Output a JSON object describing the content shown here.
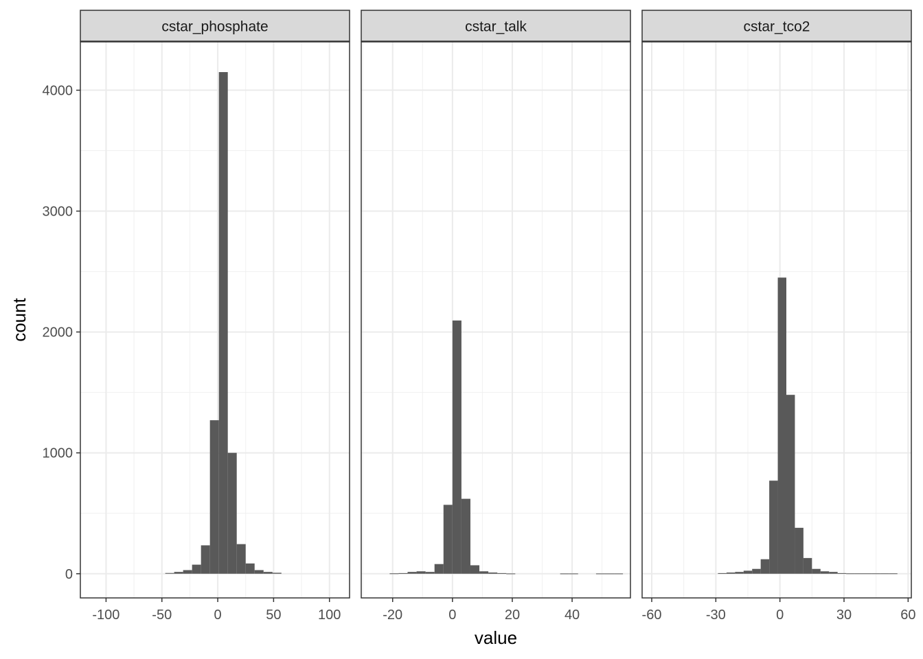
{
  "chart_data": {
    "type": "bar",
    "xlabel": "value",
    "ylabel": "count",
    "ylim": [
      -200,
      4400
    ],
    "y_ticks": [
      0,
      1000,
      2000,
      3000,
      4000
    ],
    "y_tick_labels": [
      "0",
      "1000",
      "2000",
      "3000",
      "4000"
    ],
    "grid": true,
    "bar_color": "#595959",
    "panels": [
      {
        "title": "cstar_phosphate",
        "xlim": [
          -123,
          118
        ],
        "x_ticks": [
          -100,
          -50,
          0,
          50,
          100
        ],
        "x_tick_labels": [
          "-100",
          "-50",
          "0",
          "50",
          "100"
        ],
        "bins": [
          {
            "x0": -47,
            "x1": -39,
            "count": 6
          },
          {
            "x0": -39,
            "x1": -31,
            "count": 15
          },
          {
            "x0": -31,
            "x1": -23,
            "count": 30
          },
          {
            "x0": -23,
            "x1": -15,
            "count": 75
          },
          {
            "x0": -15,
            "x1": -7,
            "count": 235
          },
          {
            "x0": -7,
            "x1": 1,
            "count": 1270
          },
          {
            "x0": 1,
            "x1": 9,
            "count": 4150
          },
          {
            "x0": 9,
            "x1": 17,
            "count": 1000
          },
          {
            "x0": 17,
            "x1": 25,
            "count": 245
          },
          {
            "x0": 25,
            "x1": 33,
            "count": 85
          },
          {
            "x0": 33,
            "x1": 41,
            "count": 30
          },
          {
            "x0": 41,
            "x1": 49,
            "count": 15
          },
          {
            "x0": 49,
            "x1": 57,
            "count": 8
          }
        ]
      },
      {
        "title": "cstar_talk",
        "xlim": [
          -30.5,
          59.5
        ],
        "x_ticks": [
          -20,
          0,
          20,
          40
        ],
        "x_tick_labels": [
          "-20",
          "0",
          "20",
          "40"
        ],
        "bins": [
          {
            "x0": -21,
            "x1": -18,
            "count": 3
          },
          {
            "x0": -18,
            "x1": -15,
            "count": 5
          },
          {
            "x0": -15,
            "x1": -12,
            "count": 15
          },
          {
            "x0": -12,
            "x1": -9,
            "count": 20
          },
          {
            "x0": -9,
            "x1": -6,
            "count": 15
          },
          {
            "x0": -6,
            "x1": -3,
            "count": 80
          },
          {
            "x0": -3,
            "x1": 0,
            "count": 570
          },
          {
            "x0": 0,
            "x1": 3,
            "count": 2095
          },
          {
            "x0": 3,
            "x1": 6,
            "count": 620
          },
          {
            "x0": 6,
            "x1": 9,
            "count": 70
          },
          {
            "x0": 9,
            "x1": 12,
            "count": 20
          },
          {
            "x0": 12,
            "x1": 15,
            "count": 10
          },
          {
            "x0": 15,
            "x1": 18,
            "count": 5
          },
          {
            "x0": 18,
            "x1": 21,
            "count": 2
          },
          {
            "x0": 36,
            "x1": 39,
            "count": 2
          },
          {
            "x0": 39,
            "x1": 42,
            "count": 2
          },
          {
            "x0": 48,
            "x1": 51,
            "count": 2
          },
          {
            "x0": 51,
            "x1": 54,
            "count": 2
          },
          {
            "x0": 54,
            "x1": 57,
            "count": 2
          }
        ]
      },
      {
        "title": "cstar_tco2",
        "xlim": [
          -64.5,
          61.5
        ],
        "x_ticks": [
          -60,
          -30,
          0,
          30,
          60
        ],
        "x_tick_labels": [
          "-60",
          "-30",
          "0",
          "30",
          "60"
        ],
        "bins": [
          {
            "x0": -29,
            "x1": -25,
            "count": 5
          },
          {
            "x0": -25,
            "x1": -21,
            "count": 10
          },
          {
            "x0": -21,
            "x1": -17,
            "count": 15
          },
          {
            "x0": -17,
            "x1": -13,
            "count": 25
          },
          {
            "x0": -13,
            "x1": -9,
            "count": 40
          },
          {
            "x0": -9,
            "x1": -5,
            "count": 120
          },
          {
            "x0": -5,
            "x1": -1,
            "count": 770
          },
          {
            "x0": -1,
            "x1": 3,
            "count": 2450
          },
          {
            "x0": 3,
            "x1": 7,
            "count": 1480
          },
          {
            "x0": 7,
            "x1": 11,
            "count": 380
          },
          {
            "x0": 11,
            "x1": 15,
            "count": 130
          },
          {
            "x0": 15,
            "x1": 19,
            "count": 40
          },
          {
            "x0": 19,
            "x1": 23,
            "count": 20
          },
          {
            "x0": 23,
            "x1": 27,
            "count": 15
          },
          {
            "x0": 27,
            "x1": 31,
            "count": 5
          },
          {
            "x0": 31,
            "x1": 35,
            "count": 3
          },
          {
            "x0": 35,
            "x1": 39,
            "count": 3
          },
          {
            "x0": 39,
            "x1": 43,
            "count": 3
          },
          {
            "x0": 43,
            "x1": 47,
            "count": 3
          },
          {
            "x0": 47,
            "x1": 51,
            "count": 3
          },
          {
            "x0": 51,
            "x1": 55,
            "count": 3
          }
        ]
      }
    ]
  }
}
